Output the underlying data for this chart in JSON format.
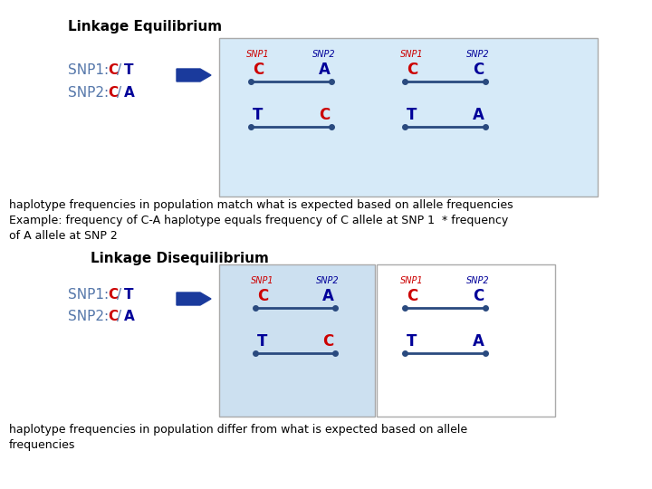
{
  "title_eq": "Linkage Equilibrium",
  "title_diseq": "Linkage Disequilibrium",
  "snp1_label": "SNP1:",
  "snp2_label": "SNP2:",
  "eq_text1": "haplotype frequencies in population match what is expected based on allele frequencies",
  "eq_text2": "Example: frequency of C-A haplotype equals frequency of C allele at SNP 1  * frequency",
  "eq_text3": "of A allele at SNP 2",
  "diseq_text1": "haplotype frequencies in population differ from what is expected based on allele",
  "diseq_text2": "frequencies",
  "snp1_color": "#cc0000",
  "snp2_color": "#000099",
  "snp_label_color": "#5577aa",
  "line_color": "#2a4a7f",
  "dot_color": "#2a4a7f",
  "box_bg_eq": "#d6eaf8",
  "box_bg_diseq_left": "#cce0f0",
  "box_bg_diseq_right": "#ffffff",
  "arrow_color": "#1a3a9c",
  "body_text_color": "#000000",
  "bg_color": "#ffffff",
  "title_fontsize": 11,
  "label_fontsize": 11,
  "allele_fontsize": 11,
  "snp_header_fontsize": 7,
  "hap_letter_fontsize": 12,
  "body_fontsize": 9
}
